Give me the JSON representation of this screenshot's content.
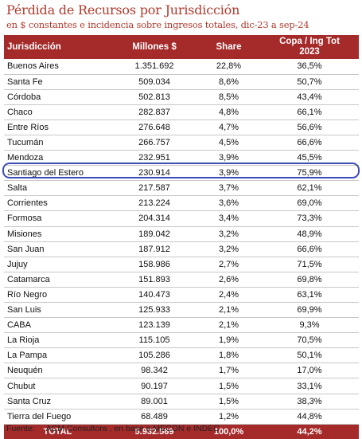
{
  "title": "Pérdida de Recursos por Jurisdicción",
  "subtitle": "en $ constantes e incidencia sobre ingresos totales, dic-23 a sep-24",
  "table": {
    "headers": {
      "jurisdiccion": "Jurisdicción",
      "millones": "Millones $",
      "share": "Share",
      "copa_line1": "Copa / Ing Tot",
      "copa_line2": "2023"
    },
    "rows": [
      {
        "name": "Buenos Aires",
        "millones": "1.351.692",
        "share": "22,8%",
        "copa": "36,5%"
      },
      {
        "name": "Santa Fe",
        "millones": "509.034",
        "share": "8,6%",
        "copa": "50,7%"
      },
      {
        "name": "Córdoba",
        "millones": "502.813",
        "share": "8,5%",
        "copa": "43,4%"
      },
      {
        "name": "Chaco",
        "millones": "282.837",
        "share": "4,8%",
        "copa": "66,1%"
      },
      {
        "name": "Entre Ríos",
        "millones": "276.648",
        "share": "4,7%",
        "copa": "56,6%"
      },
      {
        "name": "Tucumán",
        "millones": "266.757",
        "share": "4,5%",
        "copa": "66,6%"
      },
      {
        "name": "Mendoza",
        "millones": "232.951",
        "share": "3,9%",
        "copa": "45,5%"
      },
      {
        "name": "Santiago del Estero",
        "millones": "230.914",
        "share": "3,9%",
        "copa": "75,9%"
      },
      {
        "name": "Salta",
        "millones": "217.587",
        "share": "3,7%",
        "copa": "62,1%"
      },
      {
        "name": "Corrientes",
        "millones": "213.224",
        "share": "3,6%",
        "copa": "69,0%"
      },
      {
        "name": "Formosa",
        "millones": "204.314",
        "share": "3,4%",
        "copa": "73,3%"
      },
      {
        "name": "Misiones",
        "millones": "189.042",
        "share": "3,2%",
        "copa": "48,9%"
      },
      {
        "name": "San Juan",
        "millones": "187.912",
        "share": "3,2%",
        "copa": "66,6%"
      },
      {
        "name": "Jujuy",
        "millones": "158.986",
        "share": "2,7%",
        "copa": "71,5%"
      },
      {
        "name": "Catamarca",
        "millones": "151.893",
        "share": "2,6%",
        "copa": "69,8%"
      },
      {
        "name": "Río Negro",
        "millones": "140.473",
        "share": "2,4%",
        "copa": "63,1%"
      },
      {
        "name": "San Luis",
        "millones": "125.933",
        "share": "2,1%",
        "copa": "69,9%"
      },
      {
        "name": "CABA",
        "millones": "123.139",
        "share": "2,1%",
        "copa": "9,3%"
      },
      {
        "name": "La Rioja",
        "millones": "115.105",
        "share": "1,9%",
        "copa": "70,5%"
      },
      {
        "name": "La Pampa",
        "millones": "105.286",
        "share": "1,8%",
        "copa": "50,1%"
      },
      {
        "name": "Neuquén",
        "millones": "98.342",
        "share": "1,7%",
        "copa": "17,0%"
      },
      {
        "name": "Chubut",
        "millones": "90.197",
        "share": "1,5%",
        "copa": "33,1%"
      },
      {
        "name": "Santa Cruz",
        "millones": "89.001",
        "share": "1,5%",
        "copa": "38,3%"
      },
      {
        "name": "Tierra del Fuego",
        "millones": "68.489",
        "share": "1,2%",
        "copa": "44,8%"
      }
    ],
    "total": {
      "name": "TOTAL",
      "millones": "5.932.569",
      "share": "100,0%",
      "copa": "44,2%"
    },
    "highlighted_row": "Santiago del Estero"
  },
  "source": {
    "label": "Fuente:",
    "text": "ACM Consultora , en base a MECON e INDEC"
  },
  "colors": {
    "accent": "#a52a2a",
    "title": "#b03a2e",
    "highlight_border": "#3b4bb5"
  }
}
